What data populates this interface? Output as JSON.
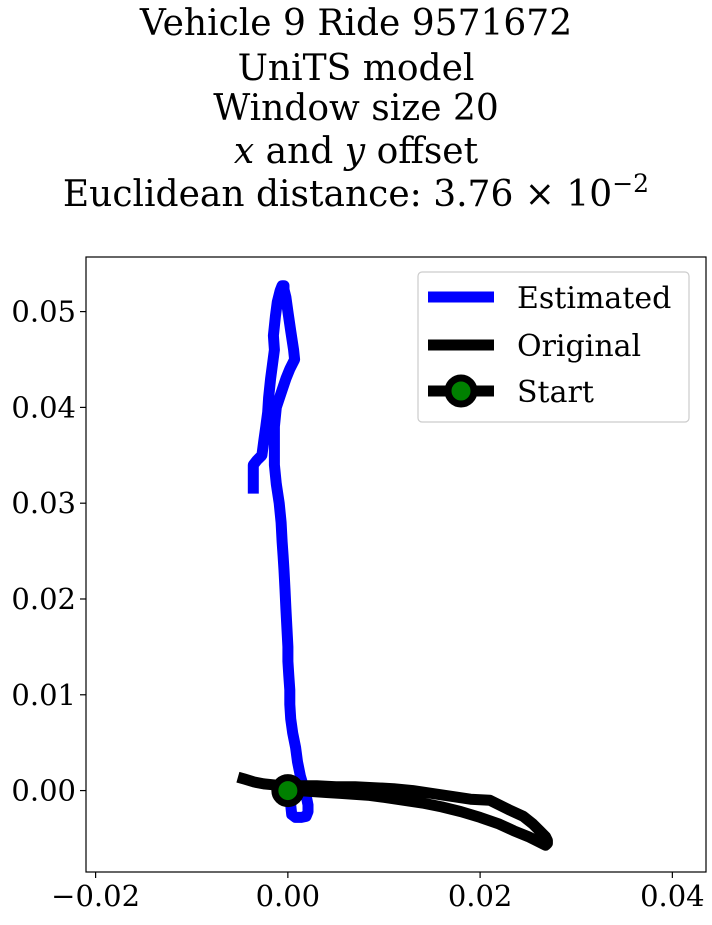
{
  "chart_data": {
    "type": "line",
    "title": [
      {
        "parts": [
          {
            "text": "Vehicle 9 Ride 9571672",
            "italic": false
          }
        ]
      },
      {
        "parts": [
          {
            "text": "UniTS model",
            "italic": false
          }
        ]
      },
      {
        "parts": [
          {
            "text": "Window size 20",
            "italic": false
          }
        ]
      },
      {
        "parts": [
          {
            "text": "x",
            "italic": true
          },
          {
            "text": " and ",
            "italic": false
          },
          {
            "text": "y",
            "italic": true
          },
          {
            "text": " offset",
            "italic": false
          }
        ]
      },
      {
        "parts": [
          {
            "text": "Euclidean distance: 3.76 × 10",
            "italic": false
          },
          {
            "text": "−2",
            "italic": false,
            "sup": true
          }
        ]
      }
    ],
    "xlabel": "",
    "ylabel": "",
    "xlim": [
      -0.021,
      0.0435
    ],
    "ylim": [
      -0.0085,
      0.0557
    ],
    "xticks": [
      -0.02,
      0.0,
      0.02,
      0.04
    ],
    "xtick_labels": [
      "−0.02",
      "0.00",
      "0.02",
      "0.04"
    ],
    "yticks": [
      0.0,
      0.01,
      0.02,
      0.03,
      0.04,
      0.05
    ],
    "ytick_labels": [
      "0.00",
      "0.01",
      "0.02",
      "0.03",
      "0.04",
      "0.05"
    ],
    "grid": false,
    "legend_position": "top-right",
    "series": [
      {
        "name": "Estimated",
        "color": "#0000ff",
        "x": [
          -0.0036,
          -0.0036,
          -0.0036,
          -0.0032,
          -0.0027,
          -0.0025,
          -0.0023,
          -0.0021,
          -0.002,
          -0.0018,
          -0.0016,
          -0.0014,
          -0.0015,
          -0.0013,
          -0.0011,
          -0.0008,
          -0.0006,
          -0.0004,
          -0.0004,
          -0.0002,
          0.0,
          0.0003,
          0.0006,
          0.0007,
          0.0002,
          -0.0002,
          -0.0007,
          -0.0012,
          -0.0014,
          -0.0014,
          -0.0014,
          -0.0012,
          -0.0009,
          -0.0007,
          -0.0006,
          -0.0005,
          -0.0004,
          -0.0003,
          -0.0002,
          -0.0001,
          0.0,
          0.0,
          0.0001,
          0.0002,
          0.0002,
          0.0003,
          0.0005,
          0.0008,
          0.001,
          0.0013,
          0.0016,
          0.0019,
          0.0021,
          0.0021,
          0.0019,
          0.0014,
          0.0008,
          0.0004,
          0.0003,
          0.0004,
          0.0008
        ],
        "y": [
          0.031,
          0.033,
          0.034,
          0.0345,
          0.035,
          0.0365,
          0.038,
          0.0395,
          0.041,
          0.043,
          0.0445,
          0.046,
          0.0475,
          0.0495,
          0.051,
          0.0522,
          0.0527,
          0.0527,
          0.0523,
          0.0515,
          0.05,
          0.048,
          0.046,
          0.045,
          0.044,
          0.043,
          0.0415,
          0.04,
          0.038,
          0.036,
          0.034,
          0.032,
          0.03,
          0.028,
          0.026,
          0.0245,
          0.023,
          0.021,
          0.019,
          0.017,
          0.015,
          0.0135,
          0.012,
          0.0105,
          0.009,
          0.0075,
          0.006,
          0.0045,
          0.003,
          0.0015,
          0.0005,
          -0.0005,
          -0.0015,
          -0.0022,
          -0.0027,
          -0.0028,
          -0.0028,
          -0.0025,
          -0.0015,
          -0.0005,
          0.0003
        ]
      },
      {
        "name": "Original",
        "color": "#000000",
        "x": [
          -0.0052,
          -0.0045,
          -0.0035,
          -0.0025,
          -0.0015,
          -0.0005,
          0.0005,
          0.0015,
          0.003,
          0.005,
          0.007,
          0.009,
          0.011,
          0.013,
          0.015,
          0.017,
          0.019,
          0.021,
          0.022,
          0.023,
          0.0245,
          0.0255,
          0.0262,
          0.0268,
          0.027,
          0.027,
          0.0268,
          0.026,
          0.025,
          0.0235,
          0.022,
          0.02,
          0.018,
          0.016,
          0.014,
          0.012,
          0.01,
          0.0085,
          0.007,
          0.0055,
          0.004,
          0.0025,
          0.0012,
          0.0
        ],
        "y": [
          0.0014,
          0.0012,
          0.0009,
          0.0007,
          0.0006,
          0.0005,
          0.0005,
          0.0005,
          0.0005,
          0.0004,
          0.0004,
          0.0003,
          0.0002,
          0.0,
          -0.0003,
          -0.0006,
          -0.0009,
          -0.001,
          -0.0015,
          -0.002,
          -0.0027,
          -0.0035,
          -0.0042,
          -0.0048,
          -0.0052,
          -0.0055,
          -0.0057,
          -0.0053,
          -0.0048,
          -0.0042,
          -0.0035,
          -0.0028,
          -0.0022,
          -0.0017,
          -0.0013,
          -0.001,
          -0.0007,
          -0.0005,
          -0.0004,
          -0.0003,
          -0.0002,
          -0.0001,
          0.0,
          0.0
        ]
      }
    ],
    "start_point": {
      "name": "Start",
      "x": 0.0,
      "y": 0.0,
      "color": "#008000",
      "edge_color": "#000000"
    },
    "legend": [
      "Estimated",
      "Original",
      "Start"
    ]
  }
}
